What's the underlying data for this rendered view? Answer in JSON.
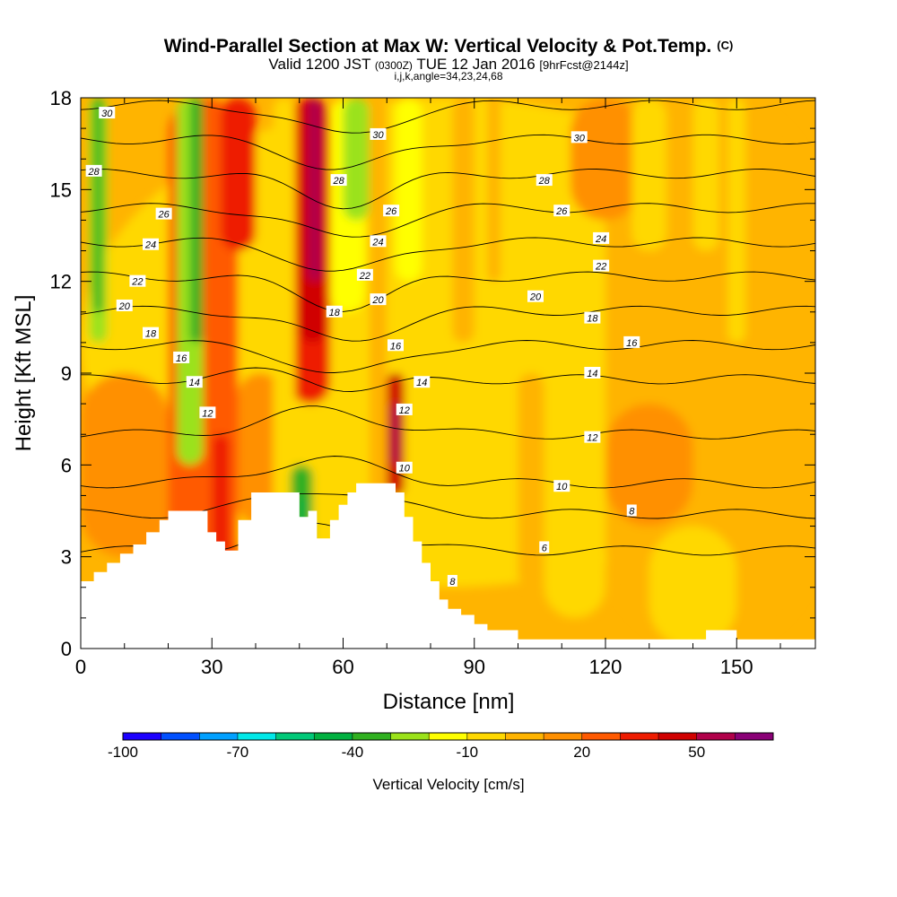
{
  "title": "Wind-Parallel Section at Max W: Vertical Velocity & Pot.Temp.",
  "title_units": "(C)",
  "subtitle_parts": [
    "Valid 1200 JST",
    "(0300Z)",
    "TUE 12 Jan 2016",
    "[9hrFcst@2144z]"
  ],
  "subtitle2": "i,j,k,angle=34,23,24,68",
  "chart_data": {
    "type": "heatmap",
    "title": "Wind-Parallel Section at Max W: Vertical Velocity & Pot.Temp.",
    "xlabel": "Distance [nm]",
    "ylabel": "Height [Kft MSL]",
    "xlim": [
      0,
      168
    ],
    "ylim": [
      0,
      18
    ],
    "xticks": [
      0,
      30,
      60,
      90,
      120,
      150
    ],
    "yticks": [
      0,
      3,
      6,
      9,
      12,
      15,
      18
    ],
    "colorbar": {
      "label": "Vertical Velocity [cm/s]",
      "range": [
        -100,
        70
      ],
      "step": 10,
      "tick_values": [
        -100,
        -70,
        -40,
        -10,
        20,
        50
      ],
      "colors": [
        "#1c00ff",
        "#0050ff",
        "#00a0ff",
        "#00e8e8",
        "#00c878",
        "#00b040",
        "#30b020",
        "#9be21a",
        "#ffff00",
        "#ffd800",
        "#ffb400",
        "#ff9000",
        "#ff5a00",
        "#ee1c00",
        "#d00000",
        "#b0004a",
        "#8a0076"
      ]
    },
    "terrain_top_kft": [
      [
        0,
        2.2
      ],
      [
        3,
        2.5
      ],
      [
        6,
        2.8
      ],
      [
        9,
        3.1
      ],
      [
        12,
        3.4
      ],
      [
        15,
        3.8
      ],
      [
        18,
        4.2
      ],
      [
        20,
        4.5
      ],
      [
        26,
        4.5
      ],
      [
        29,
        3.8
      ],
      [
        31,
        3.5
      ],
      [
        33,
        3.2
      ],
      [
        36,
        4.2
      ],
      [
        39,
        5.1
      ],
      [
        48,
        5.1
      ],
      [
        50,
        4.3
      ],
      [
        52,
        4.5
      ],
      [
        54,
        3.6
      ],
      [
        57,
        4.2
      ],
      [
        59,
        4.7
      ],
      [
        61,
        5.1
      ],
      [
        63,
        5.4
      ],
      [
        70,
        5.4
      ],
      [
        72,
        5.1
      ],
      [
        74,
        4.3
      ],
      [
        76,
        3.5
      ],
      [
        78,
        2.8
      ],
      [
        80,
        2.2
      ],
      [
        82,
        1.6
      ],
      [
        84,
        1.3
      ],
      [
        87,
        1.1
      ],
      [
        90,
        0.8
      ],
      [
        93,
        0.6
      ],
      [
        100,
        0.3
      ],
      [
        140,
        0.3
      ],
      [
        143,
        0.6
      ],
      [
        150,
        0.3
      ],
      [
        168,
        0.3
      ]
    ],
    "theta_levels": [
      6,
      8,
      10,
      12,
      14,
      16,
      18,
      20,
      22,
      24,
      26,
      28,
      30
    ],
    "theta_labels": [
      {
        "v": "30",
        "x": 6,
        "y": 17.5
      },
      {
        "v": "28",
        "x": 3,
        "y": 15.6
      },
      {
        "v": "26",
        "x": 19,
        "y": 14.2
      },
      {
        "v": "24",
        "x": 16,
        "y": 13.2
      },
      {
        "v": "22",
        "x": 13,
        "y": 12.0
      },
      {
        "v": "20",
        "x": 10,
        "y": 11.2
      },
      {
        "v": "18",
        "x": 16,
        "y": 10.3
      },
      {
        "v": "16",
        "x": 23,
        "y": 9.5
      },
      {
        "v": "14",
        "x": 26,
        "y": 8.7
      },
      {
        "v": "12",
        "x": 29,
        "y": 7.7
      },
      {
        "v": "30",
        "x": 68,
        "y": 16.8
      },
      {
        "v": "28",
        "x": 59,
        "y": 15.3
      },
      {
        "v": "26",
        "x": 71,
        "y": 14.3
      },
      {
        "v": "24",
        "x": 68,
        "y": 13.3
      },
      {
        "v": "22",
        "x": 65,
        "y": 12.2
      },
      {
        "v": "20",
        "x": 68,
        "y": 11.4
      },
      {
        "v": "18",
        "x": 58,
        "y": 11.0
      },
      {
        "v": "16",
        "x": 72,
        "y": 9.9
      },
      {
        "v": "14",
        "x": 78,
        "y": 8.7
      },
      {
        "v": "12",
        "x": 74,
        "y": 7.8
      },
      {
        "v": "10",
        "x": 74,
        "y": 5.9
      },
      {
        "v": "8",
        "x": 85,
        "y": 2.2
      },
      {
        "v": "30",
        "x": 114,
        "y": 16.7
      },
      {
        "v": "28",
        "x": 106,
        "y": 15.3
      },
      {
        "v": "26",
        "x": 110,
        "y": 14.3
      },
      {
        "v": "24",
        "x": 119,
        "y": 13.4
      },
      {
        "v": "22",
        "x": 119,
        "y": 12.5
      },
      {
        "v": "20",
        "x": 104,
        "y": 11.5
      },
      {
        "v": "18",
        "x": 117,
        "y": 10.8
      },
      {
        "v": "16",
        "x": 126,
        "y": 10.0
      },
      {
        "v": "14",
        "x": 117,
        "y": 9.0
      },
      {
        "v": "12",
        "x": 117,
        "y": 6.9
      },
      {
        "v": "10",
        "x": 110,
        "y": 5.3
      },
      {
        "v": "8",
        "x": 126,
        "y": 4.5
      },
      {
        "v": "6",
        "x": 106,
        "y": 3.3
      }
    ]
  }
}
